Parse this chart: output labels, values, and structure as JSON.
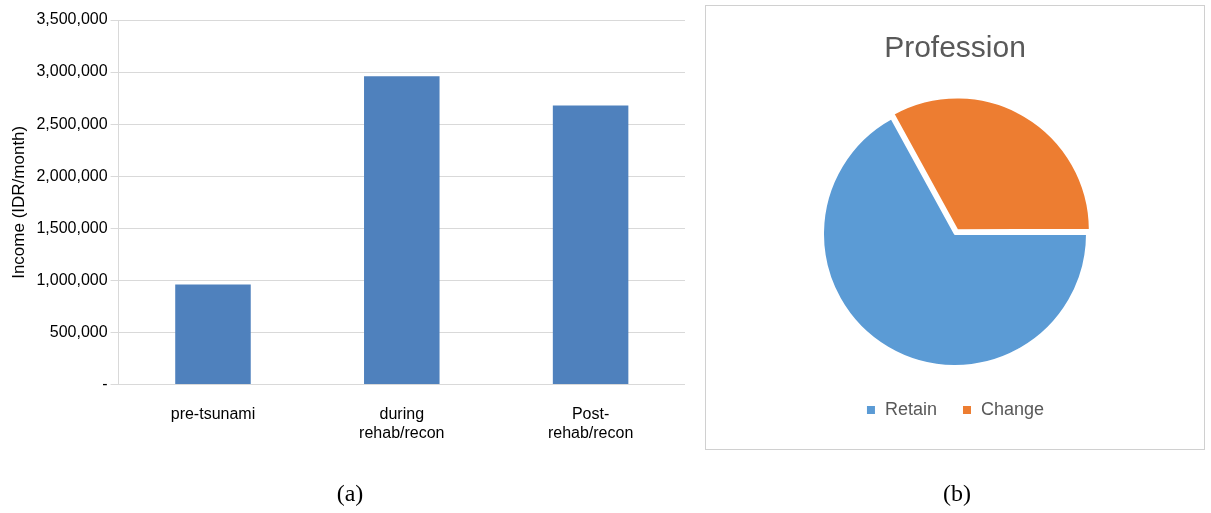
{
  "chart_data": [
    {
      "type": "bar",
      "ylabel": "Income (IDR/month)",
      "categories": [
        "pre-tsunami",
        "during rehab/recon",
        "Post-rehab/recon"
      ],
      "values": [
        960000,
        2960000,
        2680000
      ],
      "color": "#4f81bd",
      "ylim": [
        0,
        3500000
      ],
      "yticks": [
        {
          "value": 0,
          "label": "-"
        },
        {
          "value": 500000,
          "label": "500,000"
        },
        {
          "value": 1000000,
          "label": "1,000,000"
        },
        {
          "value": 1500000,
          "label": "1,500,000"
        },
        {
          "value": 2000000,
          "label": "2,000,000"
        },
        {
          "value": 2500000,
          "label": "2,500,000"
        },
        {
          "value": 3000000,
          "label": "3,000,000"
        },
        {
          "value": 3500000,
          "label": "3,500,000"
        }
      ],
      "grid": "y",
      "annotations": [
        "(a)"
      ]
    },
    {
      "type": "pie",
      "title": "Profession",
      "categories": [
        "Retain",
        "Change"
      ],
      "values": [
        67,
        33
      ],
      "colors": [
        "#5b9bd5",
        "#ed7d31"
      ],
      "legend": "bottom",
      "annotations": [
        "(b)"
      ]
    }
  ]
}
